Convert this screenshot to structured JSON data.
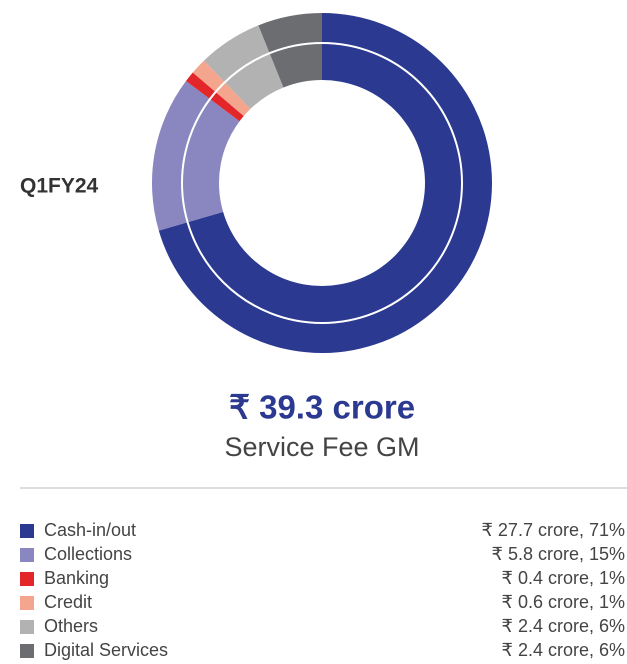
{
  "chart_data": {
    "type": "pie",
    "title": "₹ 39.3 crore",
    "subtitle": "Service Fee GM",
    "period": "Q1FY24",
    "categories": [
      "Cash-in/out",
      "Collections",
      "Banking",
      "Credit",
      "Others",
      "Digital Services"
    ],
    "values": [
      27.7,
      5.8,
      0.4,
      0.6,
      2.4,
      2.4
    ],
    "value_labels": [
      "₹ 27.7 crore, 71%",
      "₹ 5.8 crore, 15%",
      "₹ 0.4 crore, 1%",
      "₹ 0.6 crore, 1%",
      "₹ 2.4 crore, 6%",
      "₹ 2.4 crore, 6%"
    ],
    "colors": [
      "#2b3990",
      "#8a87c0",
      "#e3262a",
      "#f3a58e",
      "#b2b2b2",
      "#6c6d70"
    ]
  }
}
